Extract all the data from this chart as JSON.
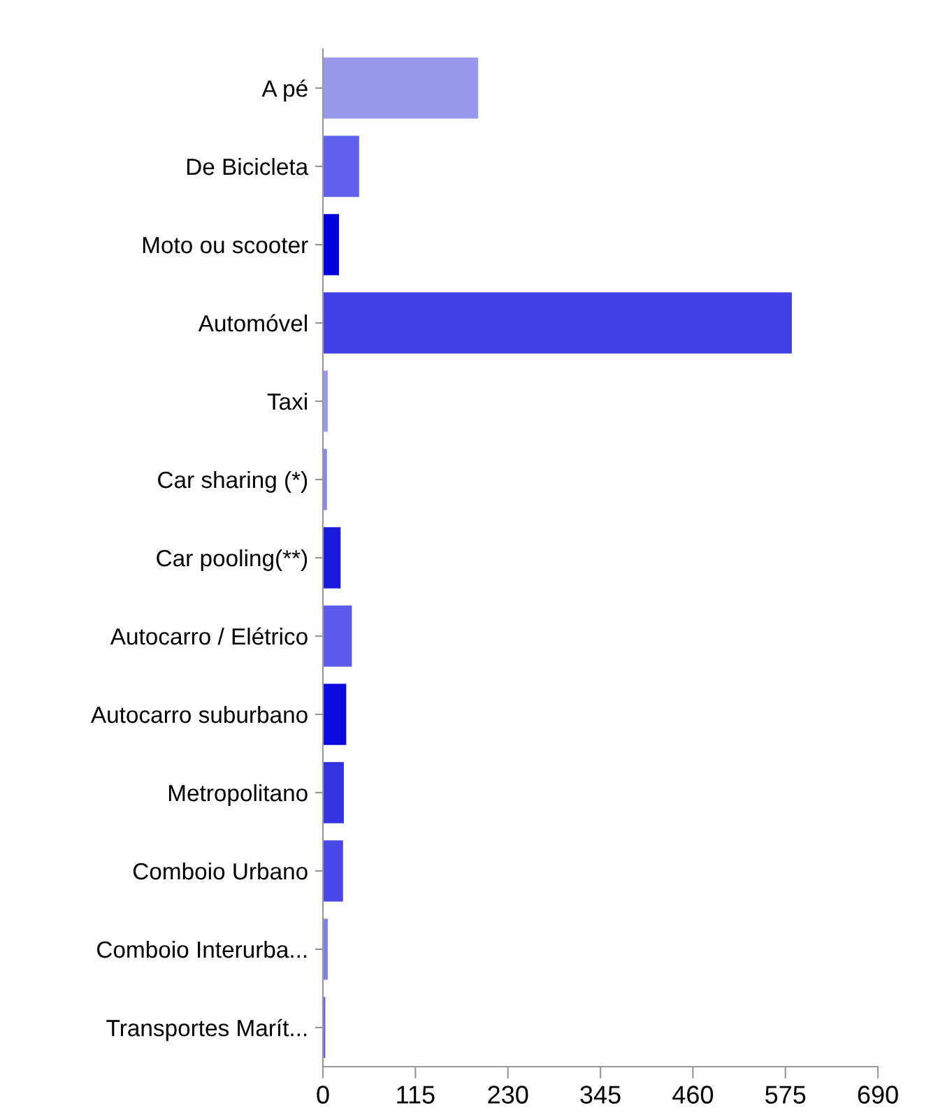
{
  "chart_data": {
    "type": "bar",
    "orientation": "horizontal",
    "categories": [
      "A pé",
      "De Bicicleta",
      "Moto ou scooter",
      "Automóvel",
      "Taxi",
      "Car sharing (*)",
      "Car pooling(**)",
      "Autocarro / Elétrico",
      "Autocarro suburbano",
      "Metropolitano",
      "Comboio Urbano",
      "Comboio Interurba...",
      "Transportes Marít..."
    ],
    "values": [
      193,
      45,
      20,
      583,
      6,
      5,
      22,
      36,
      29,
      26,
      25,
      6,
      3
    ],
    "colors": [
      "#9999ee",
      "#6060ee",
      "#0000dd",
      "#4040e6",
      "#9999f0",
      "#8888ee",
      "#1a1add",
      "#5a5aee",
      "#0a0ae0",
      "#3333e0",
      "#4848e8",
      "#8080ee",
      "#6666ee"
    ],
    "xlim": [
      0,
      690
    ],
    "xticks": [
      0,
      115,
      230,
      345,
      460,
      575,
      690
    ],
    "grid": false,
    "legend": false
  }
}
